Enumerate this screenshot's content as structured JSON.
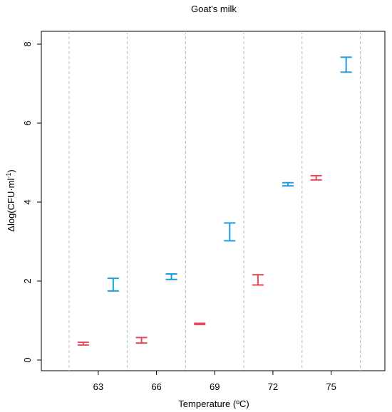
{
  "chart_data": {
    "type": "errorbar",
    "title": "Goat's milk",
    "xlabel": "Temperature (ºC)",
    "ylabel_prefix": "Δlog(CFU·ml",
    "ylabel_sup": "-1",
    "ylabel_suffix": ")",
    "x_ticks": [
      "63",
      "66",
      "69",
      "72",
      "75"
    ],
    "y_ticks": [
      "0",
      "2",
      "4",
      "6",
      "8"
    ],
    "ylim": [
      -0.2,
      8.3
    ],
    "grid": "vertical dashed separators between temperature groups",
    "colors": {
      "red": "#e8495f",
      "blue": "#1a9ee0",
      "grid": "#bbbbbb"
    },
    "groups": [
      {
        "x": "63",
        "red": {
          "low": 0.38,
          "high": 0.45
        },
        "blue": {
          "low": 1.75,
          "high": 2.07
        }
      },
      {
        "x": "66",
        "red": {
          "low": 0.43,
          "high": 0.57
        },
        "blue": {
          "low": 2.04,
          "high": 2.18
        }
      },
      {
        "x": "69",
        "red": {
          "low": 0.9,
          "high": 0.93
        },
        "blue": {
          "low": 3.02,
          "high": 3.47
        }
      },
      {
        "x": "72",
        "red": {
          "low": 1.9,
          "high": 2.16
        },
        "blue": {
          "low": 4.41,
          "high": 4.49
        }
      },
      {
        "x": "75",
        "red": {
          "low": 4.56,
          "high": 4.67
        },
        "blue": {
          "low": 7.29,
          "high": 7.67
        }
      }
    ]
  }
}
